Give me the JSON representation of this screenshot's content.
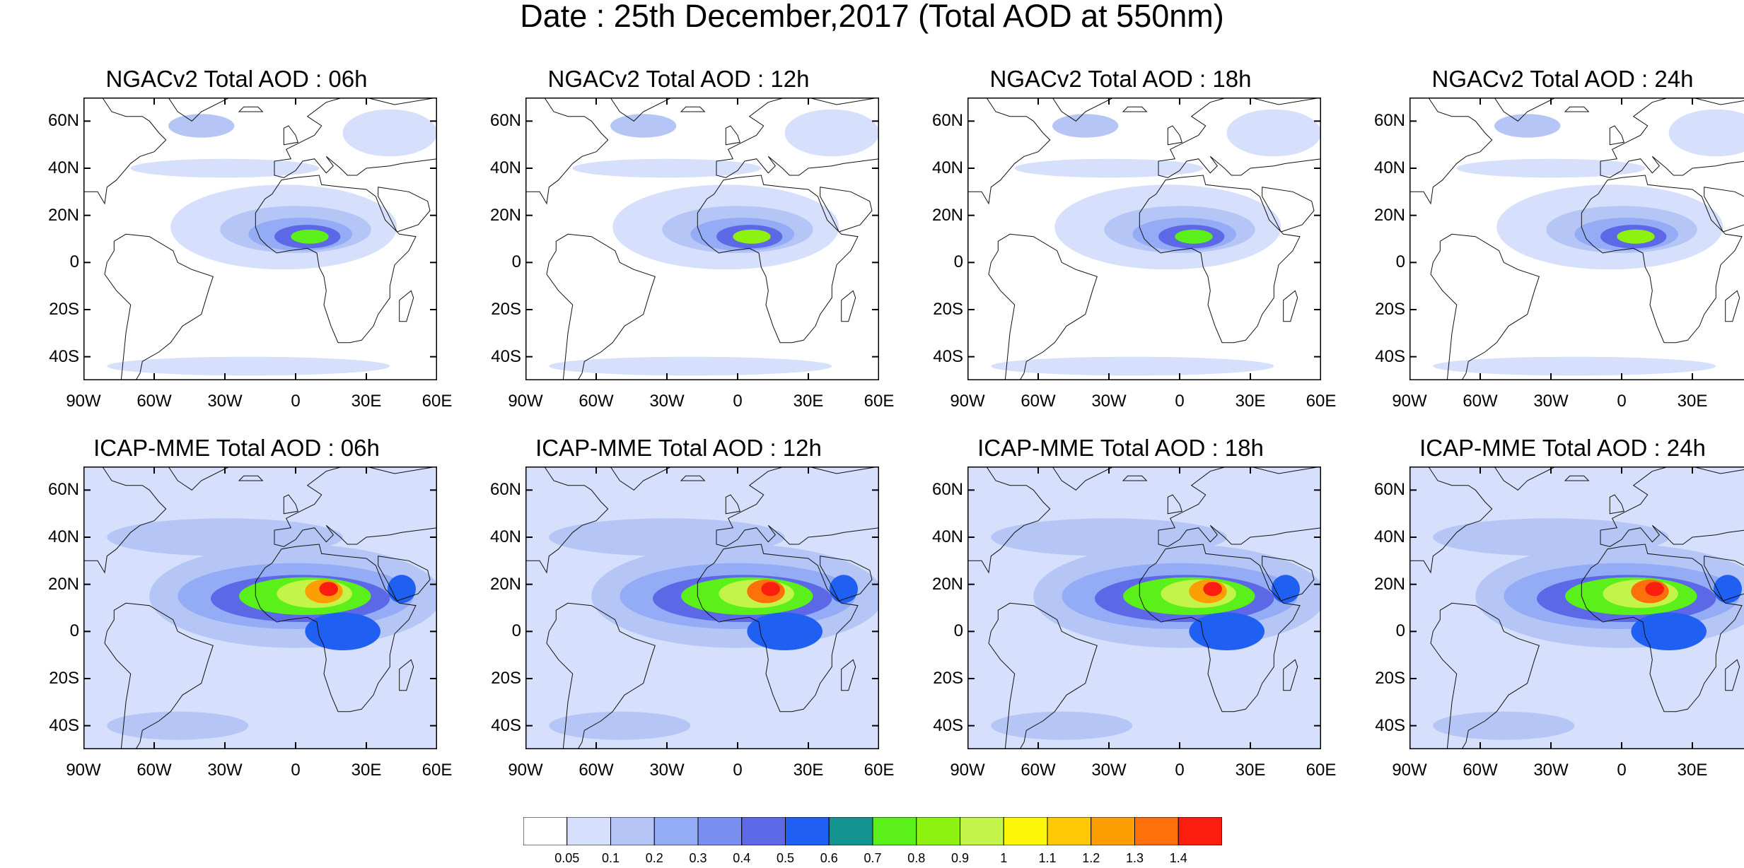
{
  "title": "Date : 25th December,2017 (Total AOD at 550nm)",
  "lat_labels": [
    "60N",
    "40N",
    "20N",
    "0",
    "20S",
    "40S"
  ],
  "lon_labels": [
    "90W",
    "60W",
    "30W",
    "0",
    "30E",
    "60E"
  ],
  "panels": [
    {
      "title": "NGACv2 Total AOD : 06h",
      "model": "NGACv2",
      "lead": "06h"
    },
    {
      "title": "NGACv2 Total AOD : 12h",
      "model": "NGACv2",
      "lead": "12h"
    },
    {
      "title": "NGACv2 Total AOD : 18h",
      "model": "NGACv2",
      "lead": "18h"
    },
    {
      "title": "NGACv2 Total AOD : 24h",
      "model": "NGACv2",
      "lead": "24h"
    },
    {
      "title": "ICAP-MME Total AOD : 06h",
      "model": "ICAP-MME",
      "lead": "06h"
    },
    {
      "title": "ICAP-MME Total AOD : 12h",
      "model": "ICAP-MME",
      "lead": "12h"
    },
    {
      "title": "ICAP-MME Total AOD : 18h",
      "model": "ICAP-MME",
      "lead": "18h"
    },
    {
      "title": "ICAP-MME Total AOD : 24h",
      "model": "ICAP-MME",
      "lead": "24h"
    }
  ],
  "colorbar": {
    "labels": [
      "0.05",
      "0.1",
      "0.2",
      "0.3",
      "0.4",
      "0.5",
      "0.6",
      "0.7",
      "0.8",
      "0.9",
      "1",
      "1.1",
      "1.2",
      "1.3",
      "1.4"
    ],
    "colors": [
      "#ffffff",
      "#d6dffb",
      "#b5c6f6",
      "#94acf6",
      "#7a8ff0",
      "#5d68e6",
      "#1f5ff1",
      "#13938f",
      "#5bf01a",
      "#8df20f",
      "#c2f44a",
      "#fef609",
      "#fec807",
      "#fd9f04",
      "#fd700a",
      "#fb1e0e"
    ]
  }
}
